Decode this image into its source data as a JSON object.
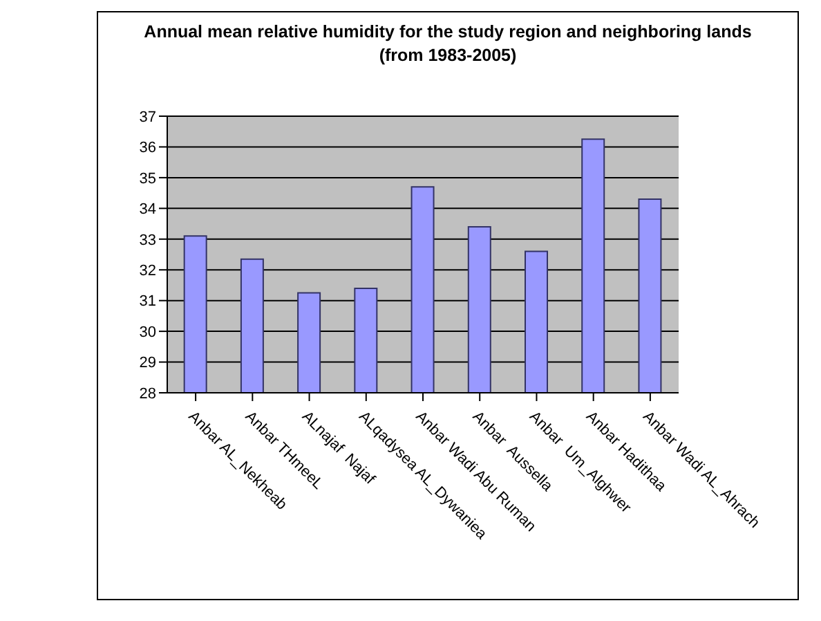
{
  "chart_data": {
    "type": "bar",
    "title": "Annual mean relative humidity for the study region and neighboring lands (from 1983-2005)",
    "categories": [
      "Anbar AL_Nekheab",
      "Anbar THmeeL",
      "ALnajaf  Najaf",
      "ALqadysea AL_Dywaniea",
      "Anbar Wadi Abu Ruman",
      "Anbar  Aussella",
      "Anbar  Um_Alghwer",
      "Anbar Hadithaa",
      "Anbar Wadi AL_Ahrach"
    ],
    "values": [
      33.1,
      32.35,
      31.25,
      31.4,
      34.7,
      33.4,
      32.6,
      36.25,
      34.3
    ],
    "color": "#9999ff",
    "ylim": [
      28,
      37
    ],
    "yticks": [
      28,
      29,
      30,
      31,
      32,
      33,
      34,
      35,
      36,
      37
    ],
    "grid": "y",
    "legend": false
  }
}
